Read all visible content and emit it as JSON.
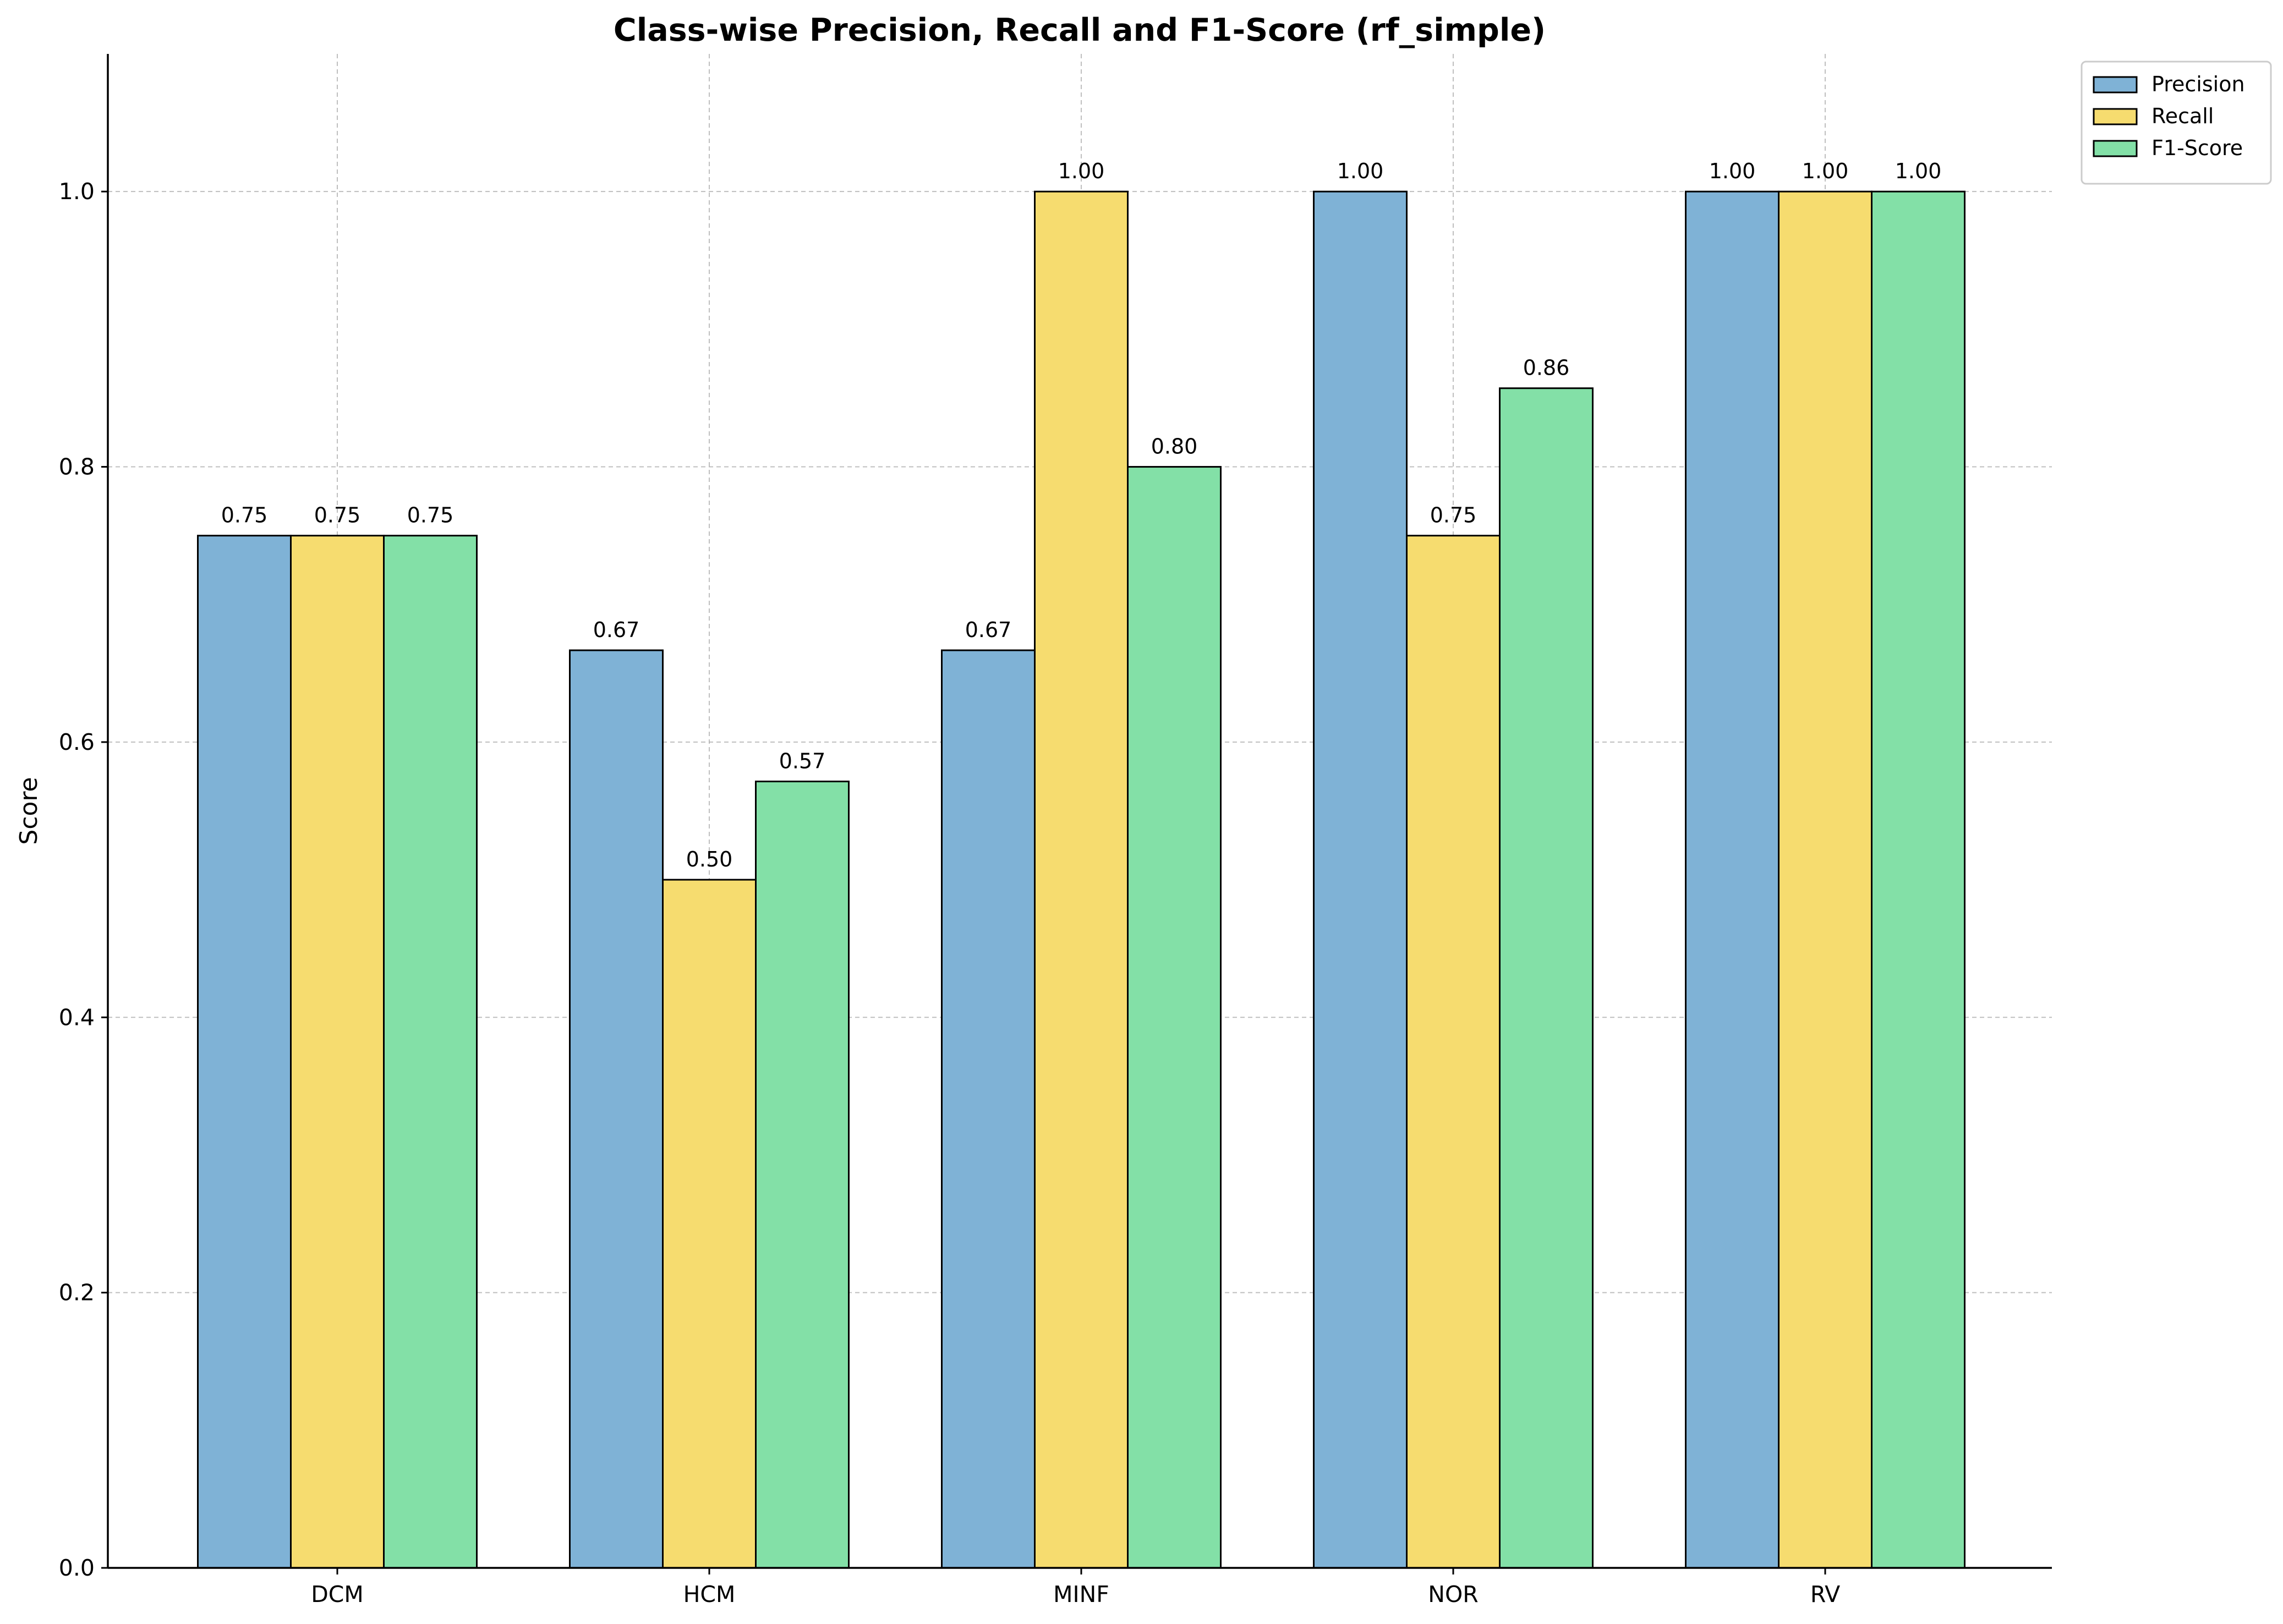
{
  "chart_data": {
    "type": "bar",
    "title": "Class-wise Precision, Recall and F1-Score (rf_simple)",
    "xlabel": "",
    "ylabel": "Score",
    "ylim": [
      0,
      1.1
    ],
    "yticks": [
      "0.0",
      "0.2",
      "0.4",
      "0.6",
      "0.8",
      "1.0"
    ],
    "grid": true,
    "legend_position": "outside-top-right",
    "categories": [
      "DCM",
      "HCM",
      "MINF",
      "NOR",
      "RV"
    ],
    "series": [
      {
        "name": "Precision",
        "color": "#7fb2d6",
        "values": [
          0.75,
          0.6667,
          0.6667,
          1.0,
          1.0
        ],
        "labels": [
          "0.75",
          "0.67",
          "0.67",
          "1.00",
          "1.00"
        ]
      },
      {
        "name": "Recall",
        "color": "#f6dc6f",
        "values": [
          0.75,
          0.5,
          1.0,
          0.75,
          1.0
        ],
        "labels": [
          "0.75",
          "0.50",
          "1.00",
          "0.75",
          "1.00"
        ]
      },
      {
        "name": "F1-Score",
        "color": "#83e0a7",
        "values": [
          0.75,
          0.5714,
          0.8,
          0.8571,
          1.0
        ],
        "labels": [
          "0.75",
          "0.57",
          "0.80",
          "0.86",
          "1.00"
        ]
      }
    ]
  }
}
